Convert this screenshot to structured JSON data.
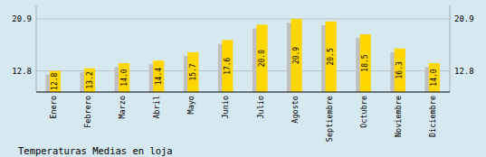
{
  "chart_data": {
    "type": "bar",
    "title": "Temperaturas Medias en loja",
    "categories": [
      "Enero",
      "Febrero",
      "Marzo",
      "Abril",
      "Mayo",
      "Junio",
      "Julio",
      "Agosto",
      "Septiembre",
      "Octubre",
      "Noviembre",
      "Diciembre"
    ],
    "series": [
      {
        "color": "#C0C0C0",
        "values": [
          12.2,
          12.6,
          13.4,
          13.8,
          15.1,
          17.0,
          19.4,
          20.3,
          19.9,
          17.9,
          15.7,
          13.4
        ]
      },
      {
        "color": "#FFD700",
        "values": [
          12.8,
          13.2,
          14.0,
          14.4,
          15.7,
          17.6,
          20.0,
          20.9,
          20.5,
          18.5,
          16.3,
          14.0
        ],
        "data_labels": true,
        "value_labels": [
          "12.8",
          "13.2",
          "14.0",
          "14.4",
          "15.7",
          "17.6",
          "20.0",
          "20.9",
          "20.5",
          "18.5",
          "16.3",
          "14.0"
        ]
      }
    ],
    "ylim": [
      9.5,
      23.0
    ],
    "yticks": [
      12.8,
      20.9
    ],
    "y2lim": [
      9.5,
      23.0
    ],
    "y2ticks": [
      12.8,
      20.9
    ],
    "grid": true
  }
}
